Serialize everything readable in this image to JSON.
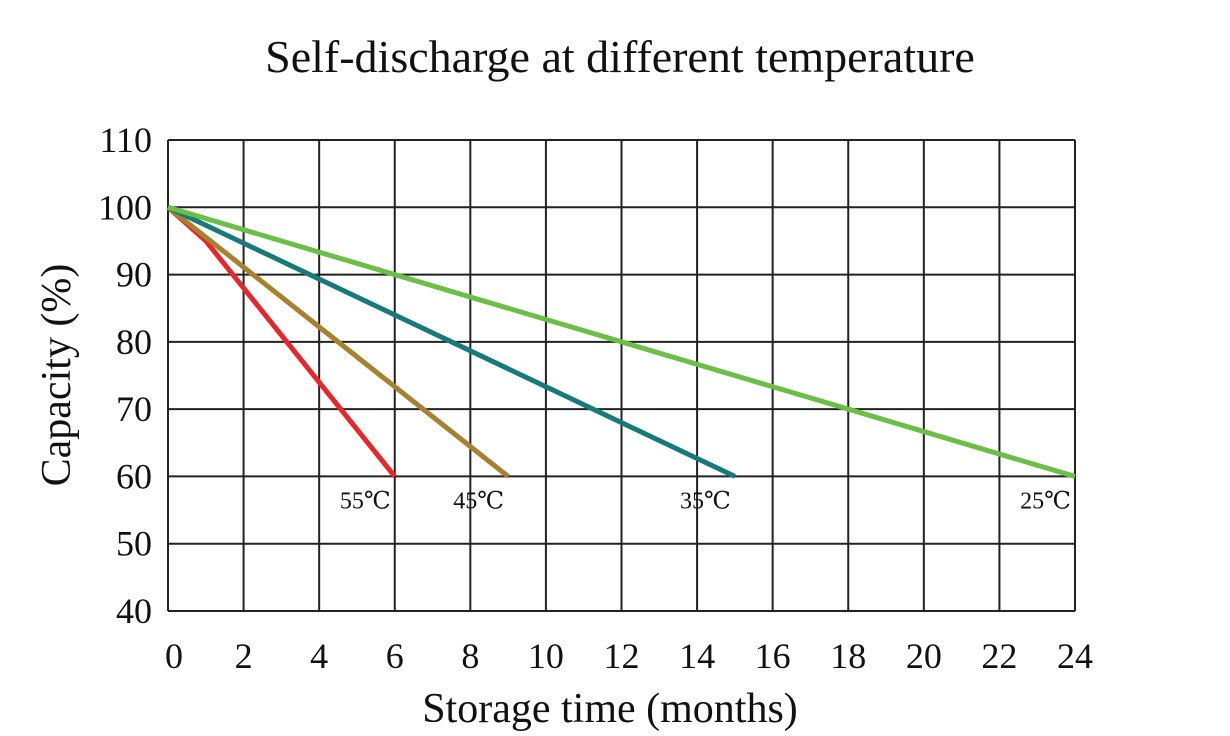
{
  "chart_data": {
    "type": "line",
    "title": "Self-discharge at different temperature",
    "xlabel": "Storage time (months)",
    "ylabel": "Capacity (%)",
    "xlim": [
      0,
      24
    ],
    "ylim": [
      40,
      110
    ],
    "xticks": [
      0,
      2,
      4,
      6,
      8,
      10,
      12,
      14,
      16,
      18,
      20,
      22,
      24
    ],
    "yticks": [
      40,
      50,
      60,
      70,
      80,
      90,
      100,
      110
    ],
    "grid": true,
    "series": [
      {
        "name": "55℃",
        "color": "#e8262a",
        "points": [
          [
            0,
            100
          ],
          [
            1,
            95
          ],
          [
            6,
            60
          ]
        ]
      },
      {
        "name": "45℃",
        "color": "#a8802e",
        "points": [
          [
            0,
            100
          ],
          [
            9,
            60
          ]
        ]
      },
      {
        "name": "35℃",
        "color": "#177a7a",
        "points": [
          [
            0,
            100
          ],
          [
            15,
            60
          ]
        ]
      },
      {
        "name": "25℃",
        "color": "#6abf45",
        "points": [
          [
            0,
            100
          ],
          [
            24,
            60
          ]
        ]
      }
    ]
  }
}
